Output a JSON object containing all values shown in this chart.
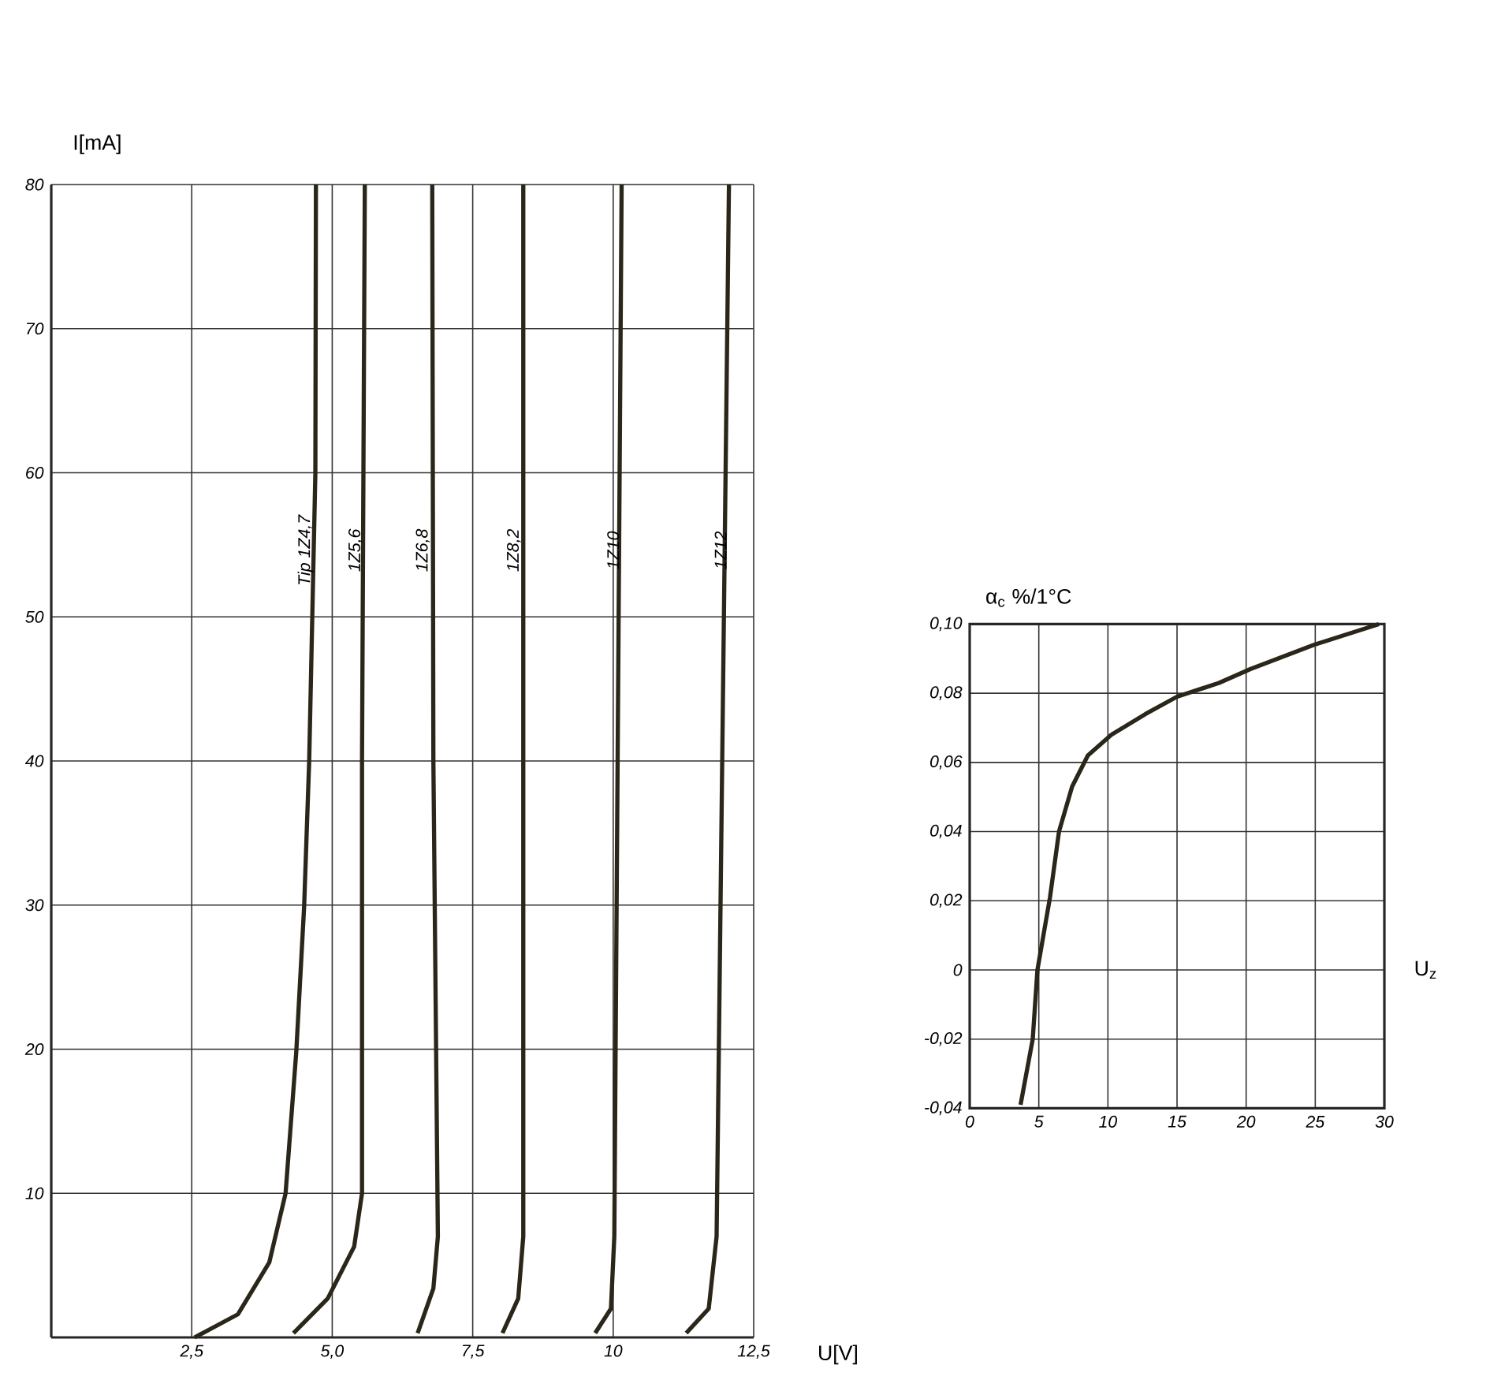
{
  "chart_data": [
    {
      "type": "line",
      "xlabel": "U[V]",
      "ylabel": "I[mA]",
      "xlim": [
        0,
        12.5
      ],
      "ylim": [
        0,
        80
      ],
      "xticks": [
        {
          "value": 2.5,
          "label": "2,5"
        },
        {
          "value": 5,
          "label": "5,0"
        },
        {
          "value": 7.5,
          "label": "7,5"
        },
        10,
        {
          "value": 12.5,
          "label": "12,5"
        }
      ],
      "yticks": [
        10,
        20,
        30,
        40,
        50,
        60,
        70,
        80
      ],
      "grid": true,
      "legend": false,
      "line_style": "solid",
      "series": [
        {
          "name": "Tip 1Z4,7",
          "color": "#2b261a",
          "x": [
            2.55,
            3.32,
            3.88,
            4.17,
            4.36,
            4.5,
            4.59,
            4.7,
            4.71
          ],
          "values": [
            0,
            1.6,
            5.2,
            10,
            19.8,
            29.9,
            40,
            60,
            80
          ]
        },
        {
          "name": "1Z5,6",
          "color": "#2b261a",
          "x": [
            4.31,
            4.92,
            5.39,
            5.53,
            5.53,
            5.58
          ],
          "values": [
            0.3,
            2.7,
            6.3,
            10,
            40,
            80
          ]
        },
        {
          "name": "1Z6,8",
          "color": "#2b261a",
          "x": [
            6.52,
            6.8,
            6.88,
            6.8,
            6.78
          ],
          "values": [
            0.3,
            3.4,
            7,
            40,
            80
          ]
        },
        {
          "name": "1Z8,2",
          "color": "#2b261a",
          "x": [
            8.03,
            8.31,
            8.4,
            8.4
          ],
          "values": [
            0.3,
            2.7,
            7,
            80
          ]
        },
        {
          "name": "1Z10",
          "color": "#2b261a",
          "x": [
            9.68,
            9.96,
            10.02,
            10.15
          ],
          "values": [
            0.3,
            2,
            7,
            80
          ]
        },
        {
          "name": "1Z12",
          "color": "#2b261a",
          "x": [
            11.3,
            11.7,
            11.84,
            11.88,
            12.06
          ],
          "values": [
            0.3,
            2,
            7,
            20,
            80
          ]
        }
      ]
    },
    {
      "type": "line",
      "xlabel": "U$_{z}$",
      "ylabel": "α$_{c}$ %/1°C",
      "xlim": [
        0,
        30
      ],
      "ylim": [
        -0.04,
        0.1
      ],
      "xticks": [
        0,
        5,
        10,
        15,
        20,
        25,
        30
      ],
      "yticks": [
        {
          "value": -0.04,
          "label": "-0,04"
        },
        {
          "value": -0.02,
          "label": "-0,02"
        },
        0,
        {
          "value": 0.02,
          "label": "0,02"
        },
        {
          "value": 0.04,
          "label": "0,04"
        },
        {
          "value": 0.06,
          "label": "0,06"
        },
        {
          "value": 0.08,
          "label": "0,08"
        },
        {
          "value": 0.1,
          "label": "0,10"
        }
      ],
      "grid": true,
      "legend": false,
      "line_style": "solid",
      "series": [
        {
          "color": "#2b261a",
          "x": [
            3.68,
            4.56,
            4.9,
            5.81,
            6.46,
            7.41,
            8.55,
            10.25,
            12.72,
            15.0,
            18.04,
            20.3,
            24.9,
            29.6
          ],
          "values": [
            -0.039,
            -0.02,
            0,
            0.021,
            0.04,
            0.053,
            0.062,
            0.068,
            0.074,
            0.079,
            0.083,
            0.087,
            0.094,
            0.1
          ]
        }
      ]
    }
  ]
}
